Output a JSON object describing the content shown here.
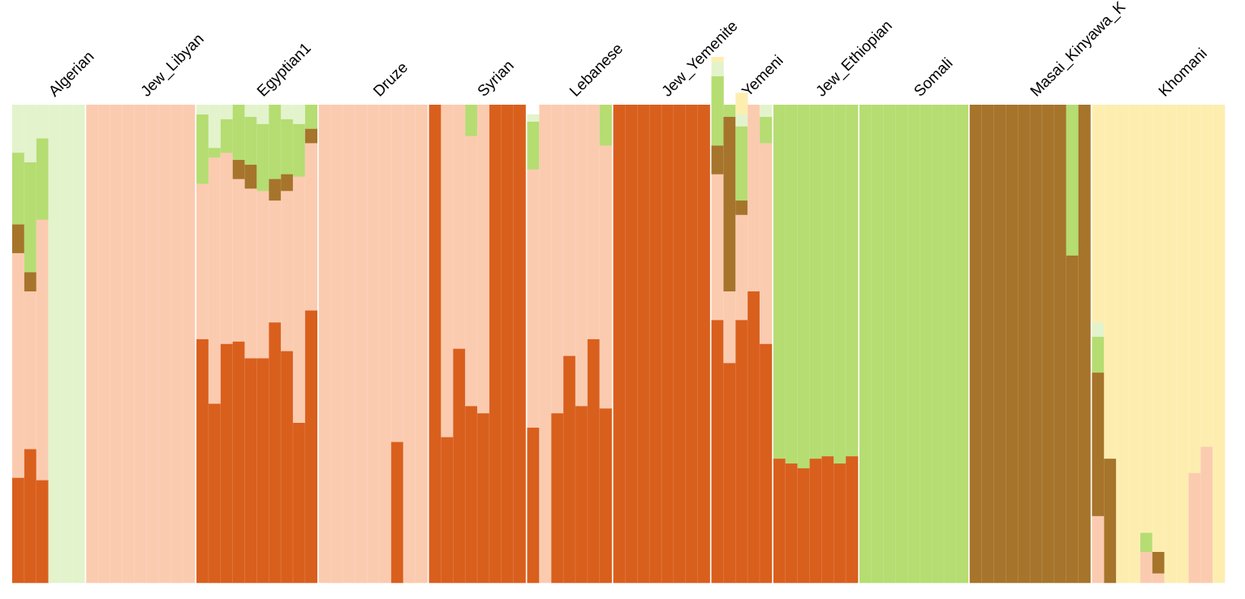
{
  "chart_data": {
    "type": "stacked-bar",
    "ylim": [
      0,
      1
    ],
    "grid": false,
    "legend": "none",
    "components": [
      {
        "key": "c1",
        "color": "#d95f1d"
      },
      {
        "key": "c2",
        "color": "#fbcbb0"
      },
      {
        "key": "c3",
        "color": "#a6742b"
      },
      {
        "key": "c4",
        "color": "#b5dd72"
      },
      {
        "key": "c5",
        "color": "#e3f3cc"
      },
      {
        "key": "c6",
        "color": "#fdeeb0"
      }
    ],
    "populations": [
      {
        "name": "Algerian",
        "individuals": [
          [
            0.22,
            0.47,
            0.06,
            0.15,
            0.1,
            0
          ],
          [
            0.28,
            0.33,
            0.04,
            0.23,
            0.12,
            0
          ],
          [
            0.215,
            0.545,
            0,
            0.17,
            0.07,
            0
          ],
          [
            0,
            0,
            0,
            0,
            1,
            0
          ],
          [
            0,
            0,
            0,
            0,
            1,
            0
          ],
          [
            0,
            0,
            0,
            0,
            1,
            0
          ]
        ]
      },
      {
        "name": "Jew_Libyan",
        "individuals": [
          [
            0,
            1,
            0,
            0,
            0,
            0
          ],
          [
            0,
            1,
            0,
            0,
            0,
            0
          ],
          [
            0,
            1,
            0,
            0,
            0,
            0
          ],
          [
            0,
            1,
            0,
            0,
            0,
            0
          ],
          [
            0,
            1,
            0,
            0,
            0,
            0
          ],
          [
            0,
            1,
            0,
            0,
            0,
            0
          ],
          [
            0,
            1,
            0,
            0,
            0,
            0
          ],
          [
            0,
            1,
            0,
            0,
            0,
            0
          ],
          [
            0,
            1,
            0,
            0,
            0,
            0
          ]
        ]
      },
      {
        "name": "Egyptian1",
        "individuals": [
          [
            0.51,
            0.325,
            0,
            0.145,
            0.02,
            0
          ],
          [
            0.375,
            0.515,
            0,
            0.02,
            0.09,
            0
          ],
          [
            0.5,
            0.4,
            0,
            0.07,
            0.03,
            0
          ],
          [
            0.505,
            0.34,
            0.04,
            0.115,
            0,
            0
          ],
          [
            0.47,
            0.355,
            0.05,
            0.1,
            0.025,
            0
          ],
          [
            0.47,
            0.35,
            0,
            0.14,
            0.04,
            0
          ],
          [
            0.545,
            0.255,
            0.045,
            0.155,
            0,
            0
          ],
          [
            0.485,
            0.335,
            0.035,
            0.115,
            0.03,
            0
          ],
          [
            0.335,
            0.515,
            0,
            0.11,
            0.04,
            0
          ],
          [
            0.57,
            0.35,
            0.03,
            0.05,
            0,
            0
          ]
        ]
      },
      {
        "name": "Druze",
        "individuals": [
          [
            0,
            1,
            0,
            0,
            0,
            0
          ],
          [
            0,
            1,
            0,
            0,
            0,
            0
          ],
          [
            0,
            1,
            0,
            0,
            0,
            0
          ],
          [
            0,
            1,
            0,
            0,
            0,
            0
          ],
          [
            0,
            1,
            0,
            0,
            0,
            0
          ],
          [
            0,
            1,
            0,
            0,
            0,
            0
          ],
          [
            0.295,
            0.705,
            0,
            0,
            0,
            0
          ],
          [
            0,
            1,
            0,
            0,
            0,
            0
          ],
          [
            0,
            1,
            0,
            0,
            0,
            0
          ]
        ]
      },
      {
        "name": "Syrian",
        "individuals": [
          [
            1,
            0,
            0,
            0,
            0,
            0
          ],
          [
            0.305,
            0.695,
            0,
            0,
            0,
            0
          ],
          [
            0.49,
            0.51,
            0,
            0,
            0,
            0
          ],
          [
            0.37,
            0.565,
            0,
            0.065,
            0,
            0
          ],
          [
            0.355,
            0.645,
            0,
            0,
            0,
            0
          ],
          [
            1,
            0,
            0,
            0,
            0,
            0
          ],
          [
            1,
            0,
            0,
            0,
            0,
            0
          ],
          [
            1,
            0,
            0,
            0,
            0,
            0
          ]
        ]
      },
      {
        "name": "Lebanese",
        "individuals": [
          [
            0.325,
            0.54,
            0,
            0.1,
            0.015,
            0
          ],
          [
            0,
            1,
            0,
            0,
            0,
            0
          ],
          [
            0.355,
            0.645,
            0,
            0,
            0,
            0
          ],
          [
            0.475,
            0.525,
            0,
            0,
            0,
            0
          ],
          [
            0.37,
            0.63,
            0,
            0,
            0,
            0
          ],
          [
            0.51,
            0.49,
            0,
            0,
            0,
            0
          ],
          [
            0.365,
            0.55,
            0,
            0.085,
            0,
            0
          ]
        ]
      },
      {
        "name": "Jew_Yemenite",
        "individuals": [
          [
            1,
            0,
            0,
            0,
            0,
            0
          ],
          [
            1,
            0,
            0,
            0,
            0,
            0
          ],
          [
            1,
            0,
            0,
            0,
            0,
            0
          ],
          [
            1,
            0,
            0,
            0,
            0,
            0
          ],
          [
            1,
            0,
            0,
            0,
            0,
            0
          ],
          [
            1,
            0,
            0,
            0,
            0,
            0
          ],
          [
            1,
            0,
            0,
            0,
            0,
            0
          ],
          [
            1,
            0,
            0,
            0,
            0,
            0
          ]
        ]
      },
      {
        "name": "Yemeni",
        "individuals": [
          [
            0.55,
            0.305,
            0.06,
            0.145,
            0.03,
            0.01
          ],
          [
            0.46,
            0.15,
            0.365,
            0.025,
            0,
            0
          ],
          [
            0.55,
            0.22,
            0.03,
            0.155,
            0.025,
            0.045
          ],
          [
            0.61,
            0.39,
            0,
            0,
            0,
            0
          ],
          [
            0.5,
            0.42,
            0,
            0.055,
            0.025,
            0
          ]
        ]
      },
      {
        "name": "Jew_Ethiopian",
        "individuals": [
          [
            0.26,
            0,
            0,
            0.74,
            0,
            0
          ],
          [
            0.25,
            0,
            0,
            0.75,
            0,
            0
          ],
          [
            0.24,
            0,
            0,
            0.76,
            0,
            0
          ],
          [
            0.26,
            0,
            0,
            0.74,
            0,
            0
          ],
          [
            0.265,
            0,
            0,
            0.735,
            0,
            0
          ],
          [
            0.25,
            0,
            0,
            0.75,
            0,
            0
          ],
          [
            0.265,
            0,
            0,
            0.735,
            0,
            0
          ]
        ]
      },
      {
        "name": "Somali",
        "individuals": [
          [
            0,
            0,
            0,
            1,
            0,
            0
          ],
          [
            0,
            0,
            0,
            1,
            0,
            0
          ],
          [
            0,
            0,
            0,
            1,
            0,
            0
          ],
          [
            0,
            0,
            0,
            1,
            0,
            0
          ],
          [
            0,
            0,
            0,
            1,
            0,
            0
          ],
          [
            0,
            0,
            0,
            1,
            0,
            0
          ],
          [
            0,
            0,
            0,
            1,
            0,
            0
          ],
          [
            0,
            0,
            0,
            1,
            0,
            0
          ],
          [
            0,
            0,
            0,
            1,
            0,
            0
          ]
        ]
      },
      {
        "name": "Masai_Kinyawa_K",
        "individuals": [
          [
            0,
            0,
            1,
            0,
            0,
            0
          ],
          [
            0,
            0,
            1,
            0,
            0,
            0
          ],
          [
            0,
            0,
            1,
            0,
            0,
            0
          ],
          [
            0,
            0,
            1,
            0,
            0,
            0
          ],
          [
            0,
            0,
            1,
            0,
            0,
            0
          ],
          [
            0,
            0,
            1,
            0,
            0,
            0
          ],
          [
            0,
            0,
            1,
            0,
            0,
            0
          ],
          [
            0,
            0,
            1,
            0,
            0,
            0
          ],
          [
            0,
            0,
            0.685,
            0.315,
            0,
            0
          ],
          [
            0,
            0,
            1,
            0,
            0,
            0
          ]
        ]
      },
      {
        "name": "Khomani",
        "individuals": [
          [
            0,
            0.14,
            0.3,
            0.075,
            0.03,
            0.455
          ],
          [
            0,
            0,
            0.26,
            0,
            0,
            0.74
          ],
          [
            0,
            0,
            0,
            0,
            0,
            1
          ],
          [
            0,
            0,
            0,
            0,
            0,
            1
          ],
          [
            0,
            0.065,
            0,
            0.04,
            0,
            0.895
          ],
          [
            0,
            0.02,
            0.045,
            0,
            0,
            0.935
          ],
          [
            0,
            0,
            0,
            0,
            0,
            1
          ],
          [
            0,
            0,
            0,
            0,
            0,
            1
          ],
          [
            0,
            0.23,
            0,
            0,
            0,
            0.77
          ],
          [
            0,
            0.285,
            0,
            0,
            0,
            0.715
          ],
          [
            0,
            0,
            0,
            0,
            0,
            1
          ]
        ]
      }
    ]
  }
}
